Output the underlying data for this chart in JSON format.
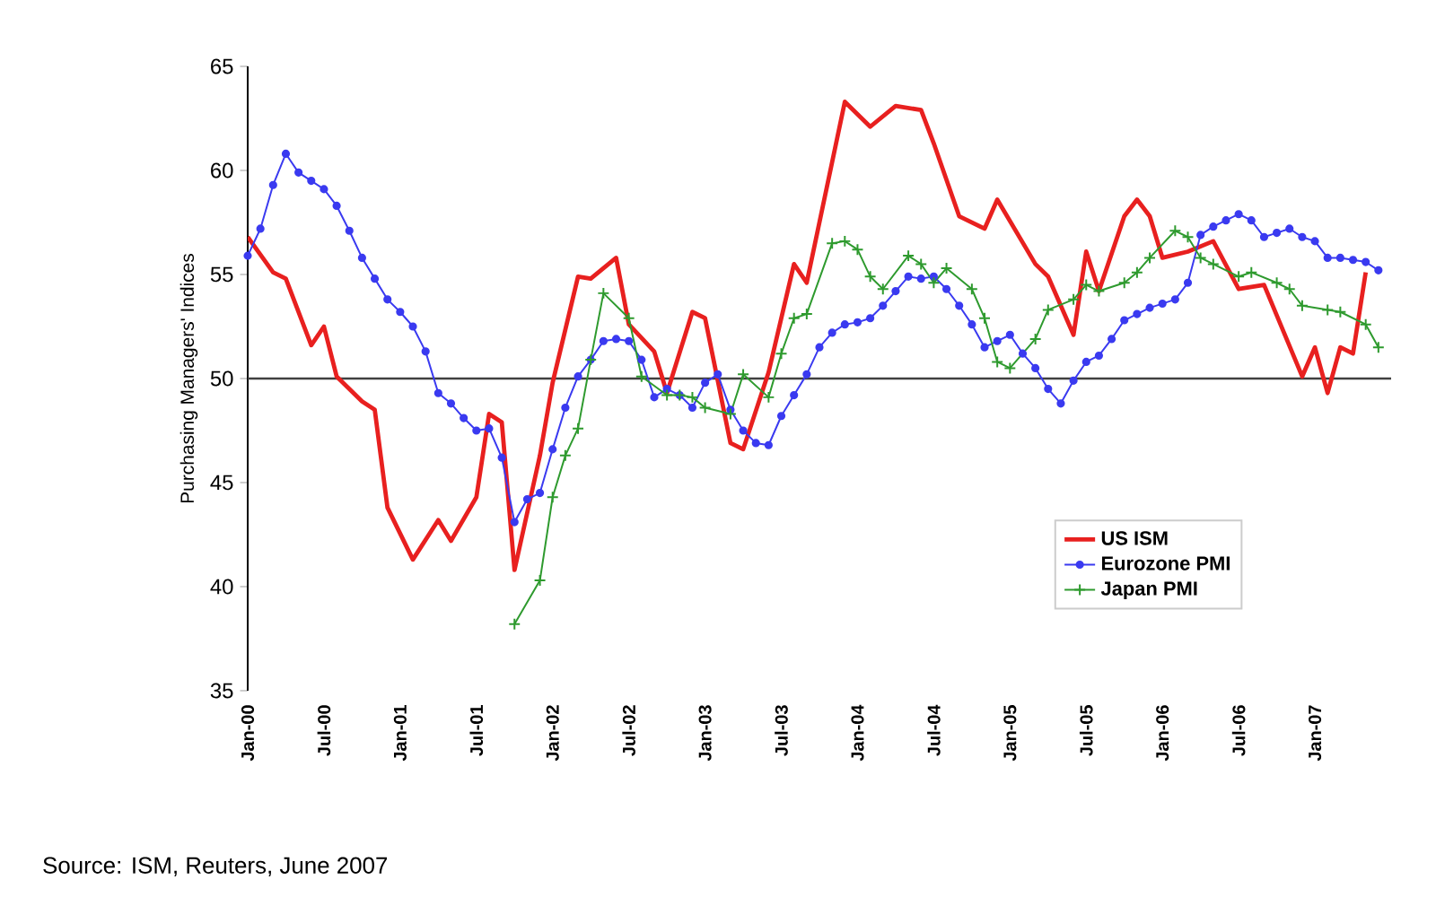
{
  "chart_data": {
    "type": "line",
    "ylabel": "Purchasing Managers' Indices",
    "annotations": [
      "Source: ISM, Reuters, June 2007"
    ],
    "xlim": [
      "2000-01",
      "2007-07"
    ],
    "ylim": [
      35,
      65
    ],
    "yticks": [
      35,
      40,
      45,
      50,
      55,
      60,
      65
    ],
    "xticks": [
      {
        "value": "2000-01",
        "label": "Jan-00"
      },
      {
        "value": "2000-07",
        "label": "Jul-00"
      },
      {
        "value": "2001-01",
        "label": "Jan-01"
      },
      {
        "value": "2001-07",
        "label": "Jul-01"
      },
      {
        "value": "2002-01",
        "label": "Jan-02"
      },
      {
        "value": "2002-07",
        "label": "Jul-02"
      },
      {
        "value": "2003-01",
        "label": "Jan-03"
      },
      {
        "value": "2003-07",
        "label": "Jul-03"
      },
      {
        "value": "2004-01",
        "label": "Jan-04"
      },
      {
        "value": "2004-07",
        "label": "Jul-04"
      },
      {
        "value": "2005-01",
        "label": "Jan-05"
      },
      {
        "value": "2005-07",
        "label": "Jul-05"
      },
      {
        "value": "2006-01",
        "label": "Jan-06"
      },
      {
        "value": "2006-07",
        "label": "Jul-06"
      },
      {
        "value": "2007-01",
        "label": "Jan-07"
      }
    ],
    "legend": "bottom right",
    "grid": false,
    "ref_lines": [
      {
        "axis": "y",
        "value": 50,
        "color": "#404040"
      }
    ],
    "series": [
      {
        "name": "US ISM",
        "color": "#e8201f",
        "marker": "none",
        "line_style": "solid",
        "x": [
          "2000-01",
          "2000-03",
          "2000-04",
          "2000-06",
          "2000-07",
          "2000-08",
          "2000-10",
          "2000-11",
          "2000-12",
          "2001-02",
          "2001-04",
          "2001-05",
          "2001-07",
          "2001-08",
          "2001-09",
          "2001-10",
          "2001-12",
          "2002-01",
          "2002-03",
          "2002-04",
          "2002-06",
          "2002-07",
          "2002-09",
          "2002-10",
          "2002-12",
          "2003-01",
          "2003-03",
          "2003-04",
          "2003-06",
          "2003-08",
          "2003-09",
          "2003-12",
          "2004-02",
          "2004-04",
          "2004-06",
          "2004-07",
          "2004-09",
          "2004-11",
          "2004-12",
          "2005-03",
          "2005-04",
          "2005-06",
          "2005-07",
          "2005-08",
          "2005-10",
          "2005-11",
          "2005-12",
          "2006-01",
          "2006-03",
          "2006-05",
          "2006-07",
          "2006-09",
          "2006-12",
          "2007-01",
          "2007-02",
          "2007-03",
          "2007-04",
          "2007-05"
        ],
        "values": [
          56.8,
          55.1,
          54.8,
          51.6,
          52.5,
          50.1,
          48.9,
          48.5,
          43.8,
          41.3,
          43.2,
          42.2,
          44.3,
          48.3,
          47.9,
          40.8,
          46.3,
          49.8,
          54.9,
          54.8,
          55.8,
          52.6,
          51.3,
          49.3,
          53.2,
          52.9,
          46.9,
          46.6,
          50.3,
          55.5,
          54.6,
          63.3,
          62.1,
          63.1,
          62.9,
          61.3,
          57.8,
          57.2,
          58.6,
          55.5,
          54.9,
          52.1,
          56.1,
          54.2,
          57.8,
          58.6,
          57.8,
          55.8,
          56.1,
          56.6,
          54.3,
          54.5,
          50.1,
          51.5,
          49.3,
          51.5,
          51.2,
          55.1
        ]
      },
      {
        "name": "Eurozone PMI",
        "color": "#3a3af0",
        "marker": "circle",
        "line_style": "solid",
        "x": [
          "2000-01",
          "2000-02",
          "2000-03",
          "2000-04",
          "2000-05",
          "2000-06",
          "2000-07",
          "2000-08",
          "2000-09",
          "2000-10",
          "2000-11",
          "2000-12",
          "2001-01",
          "2001-02",
          "2001-03",
          "2001-04",
          "2001-05",
          "2001-06",
          "2001-07",
          "2001-08",
          "2001-09",
          "2001-10",
          "2001-11",
          "2001-12",
          "2002-01",
          "2002-02",
          "2002-03",
          "2002-04",
          "2002-05",
          "2002-06",
          "2002-07",
          "2002-08",
          "2002-09",
          "2002-10",
          "2002-11",
          "2002-12",
          "2003-01",
          "2003-02",
          "2003-03",
          "2003-04",
          "2003-05",
          "2003-06",
          "2003-07",
          "2003-08",
          "2003-09",
          "2003-10",
          "2003-11",
          "2003-12",
          "2004-01",
          "2004-02",
          "2004-03",
          "2004-04",
          "2004-05",
          "2004-06",
          "2004-07",
          "2004-08",
          "2004-09",
          "2004-10",
          "2004-11",
          "2004-12",
          "2005-01",
          "2005-02",
          "2005-03",
          "2005-04",
          "2005-05",
          "2005-06",
          "2005-07",
          "2005-08",
          "2005-09",
          "2005-10",
          "2005-11",
          "2005-12",
          "2006-01",
          "2006-02",
          "2006-03",
          "2006-04",
          "2006-05",
          "2006-06",
          "2006-07",
          "2006-08",
          "2006-09",
          "2006-10",
          "2006-11",
          "2006-12",
          "2007-01",
          "2007-02",
          "2007-03",
          "2007-04",
          "2007-05",
          "2007-06"
        ],
        "values": [
          55.9,
          57.2,
          59.3,
          60.8,
          59.9,
          59.5,
          59.1,
          58.3,
          57.1,
          55.8,
          54.8,
          53.8,
          53.2,
          52.5,
          51.3,
          49.3,
          48.8,
          48.1,
          47.5,
          47.6,
          46.2,
          43.1,
          44.2,
          44.5,
          46.6,
          48.6,
          50.1,
          50.9,
          51.8,
          51.9,
          51.8,
          50.9,
          49.1,
          49.5,
          49.2,
          48.6,
          49.8,
          50.2,
          48.5,
          47.5,
          46.9,
          46.8,
          48.2,
          49.2,
          50.2,
          51.5,
          52.2,
          52.6,
          52.7,
          52.9,
          53.5,
          54.2,
          54.9,
          54.8,
          54.9,
          54.3,
          53.5,
          52.6,
          51.5,
          51.8,
          52.1,
          51.2,
          50.5,
          49.5,
          48.8,
          49.9,
          50.8,
          51.1,
          51.9,
          52.8,
          53.1,
          53.4,
          53.6,
          53.8,
          54.6,
          56.9,
          57.3,
          57.6,
          57.9,
          57.6,
          56.8,
          57.0,
          57.2,
          56.8,
          56.6,
          55.8,
          55.8,
          55.7,
          55.6,
          55.2
        ]
      },
      {
        "name": "Japan PMI",
        "color": "#2e9a2e",
        "marker": "cross",
        "line_style": "solid",
        "x": [
          "2001-10",
          "2001-12",
          "2002-01",
          "2002-02",
          "2002-03",
          "2002-04",
          "2002-05",
          "2002-07",
          "2002-08",
          "2002-10",
          "2002-11",
          "2002-12",
          "2003-01",
          "2003-03",
          "2003-04",
          "2003-06",
          "2003-07",
          "2003-08",
          "2003-09",
          "2003-11",
          "2003-12",
          "2004-01",
          "2004-02",
          "2004-03",
          "2004-05",
          "2004-06",
          "2004-07",
          "2004-08",
          "2004-10",
          "2004-11",
          "2004-12",
          "2005-01",
          "2005-03",
          "2005-04",
          "2005-06",
          "2005-07",
          "2005-08",
          "2005-10",
          "2005-11",
          "2005-12",
          "2006-02",
          "2006-03",
          "2006-04",
          "2006-05",
          "2006-07",
          "2006-08",
          "2006-10",
          "2006-11",
          "2006-12",
          "2007-02",
          "2007-03",
          "2007-05",
          "2007-06"
        ],
        "values": [
          38.2,
          40.3,
          44.3,
          46.3,
          47.6,
          50.9,
          54.1,
          52.9,
          50.1,
          49.2,
          49.2,
          49.1,
          48.6,
          48.3,
          50.2,
          49.1,
          51.2,
          52.9,
          53.1,
          56.5,
          56.6,
          56.2,
          54.9,
          54.3,
          55.9,
          55.5,
          54.6,
          55.3,
          54.3,
          52.9,
          50.8,
          50.5,
          51.9,
          53.3,
          53.8,
          54.5,
          54.2,
          54.6,
          55.1,
          55.8,
          57.1,
          56.8,
          55.8,
          55.5,
          54.9,
          55.1,
          54.6,
          54.3,
          53.5,
          53.3,
          53.2,
          52.6,
          51.5
        ]
      }
    ]
  }
}
